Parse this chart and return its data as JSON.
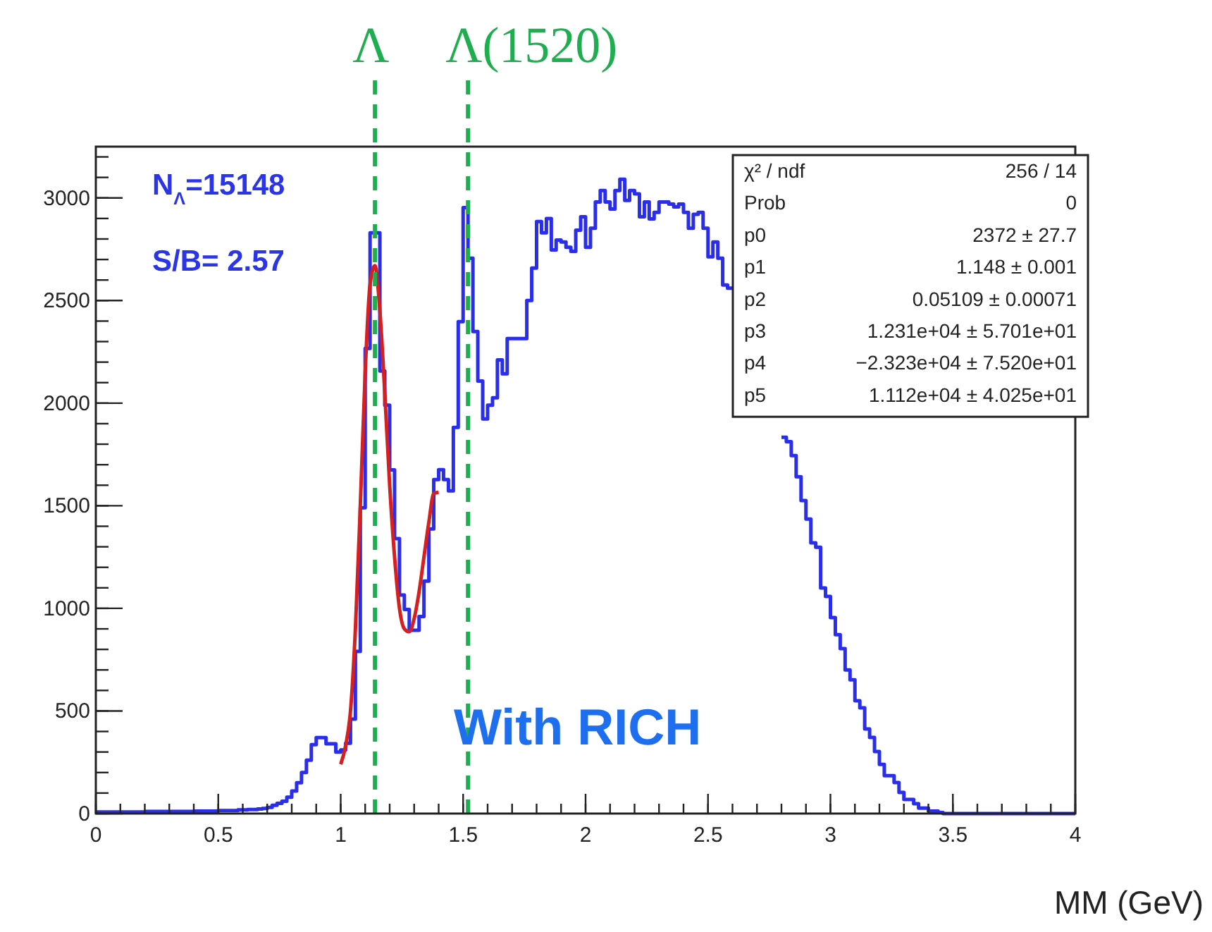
{
  "chart_data": {
    "type": "histogram",
    "xlabel": "MM (GeV)",
    "xlim": [
      0,
      4
    ],
    "xticks": [
      0,
      0.5,
      1,
      1.5,
      2,
      2.5,
      3,
      3.5,
      4
    ],
    "ylim": [
      0,
      3250
    ],
    "yticks": [
      0,
      500,
      1000,
      1500,
      2000,
      2500,
      3000
    ],
    "grid": false,
    "series": [
      {
        "color": "#2a2ee8",
        "bins": [
          0,
          0.02,
          0.04,
          0.06,
          0.08,
          0.1,
          0.12,
          0.14,
          0.16,
          0.18,
          0.2,
          0.22,
          0.24,
          0.26,
          0.28,
          0.3,
          0.32,
          0.34,
          0.36,
          0.38,
          0.4,
          0.42,
          0.44,
          0.46,
          0.48,
          0.5,
          0.52,
          0.54,
          0.56,
          0.58,
          0.6,
          0.62,
          0.64,
          0.66,
          0.68,
          0.7,
          0.72,
          0.74,
          0.76,
          0.78,
          0.8,
          0.82,
          0.84,
          0.86,
          0.88,
          0.9,
          0.92,
          0.94,
          0.96,
          0.98,
          1,
          1.02,
          1.04,
          1.06,
          1.08,
          1.1,
          1.12,
          1.14,
          1.16,
          1.18,
          1.2,
          1.22,
          1.24,
          1.26,
          1.28,
          1.3,
          1.32,
          1.34,
          1.36,
          1.38,
          1.4,
          1.42,
          1.44,
          1.46,
          1.48,
          1.5,
          1.52,
          1.54,
          1.56,
          1.58,
          1.6,
          1.62,
          1.64,
          1.66,
          1.68,
          1.7,
          1.72,
          1.74,
          1.76,
          1.78,
          1.8,
          1.82,
          1.84,
          1.86,
          1.88,
          1.9,
          1.92,
          1.94,
          1.96,
          1.98,
          2,
          2.02,
          2.04,
          2.06,
          2.08,
          2.1,
          2.12,
          2.14,
          2.16,
          2.18,
          2.2,
          2.22,
          2.24,
          2.26,
          2.28,
          2.3,
          2.32,
          2.34,
          2.36,
          2.38,
          2.4,
          2.42,
          2.44,
          2.46,
          2.48,
          2.5,
          2.52,
          2.54,
          2.56,
          2.58,
          2.6
        ],
        "values": [
          8,
          8,
          8,
          8,
          8,
          8,
          8,
          8,
          8,
          8,
          10,
          10,
          10,
          10,
          10,
          10,
          10,
          10,
          10,
          10,
          12,
          12,
          12,
          12,
          12,
          15,
          15,
          15,
          15,
          18,
          18,
          20,
          20,
          22,
          25,
          30,
          40,
          50,
          60,
          80,
          110,
          150,
          200,
          260,
          336,
          370,
          370,
          340,
          340,
          300,
          310,
          343,
          460,
          790,
          1490,
          2267,
          2830,
          2830,
          2157,
          1990,
          1675,
          1340,
          1065,
          995,
          893,
          893,
          960,
          1133,
          1387,
          1628,
          1676,
          1628,
          1573,
          1882,
          2397,
          2953,
          2706,
          2349,
          2108,
          1923,
          1990,
          2026,
          2211,
          2143,
          2315,
          2315,
          2315,
          2315,
          2500,
          2658,
          2885,
          2830,
          2900,
          2747,
          2795,
          2785,
          2760,
          2740,
          2843,
          2908,
          2760,
          2852,
          2980,
          3036,
          2980,
          2946,
          3036,
          3091,
          2988,
          3036,
          3020,
          2908,
          2980,
          2898,
          2930,
          2980,
          2980,
          2970,
          2956,
          2970,
          2930,
          2852,
          2920,
          2930,
          2852,
          2713,
          2785,
          2706,
          2576,
          2560
        ]
      },
      {
        "color": "#2a2ee8",
        "bins": [
          2.8,
          2.82,
          2.84,
          2.86,
          2.88,
          2.9,
          2.92,
          2.94,
          2.96,
          2.98,
          3,
          3.02,
          3.04,
          3.06,
          3.08,
          3.1,
          3.12,
          3.14,
          3.16,
          3.18,
          3.2,
          3.22,
          3.24,
          3.26,
          3.28,
          3.3,
          3.32,
          3.34,
          3.36,
          3.38,
          3.4,
          3.42,
          3.44,
          3.46,
          3.48,
          3.5,
          3.52,
          3.54,
          3.56,
          3.58,
          3.6,
          3.62,
          3.64,
          3.66,
          3.68,
          3.7,
          3.72,
          3.74,
          3.76,
          3.78,
          3.8,
          3.82,
          3.84,
          3.86,
          3.88,
          3.9,
          3.92,
          3.94,
          3.96,
          3.98,
          4
        ],
        "values": [
          1834,
          1812,
          1744,
          1641,
          1525,
          1435,
          1319,
          1298,
          1099,
          1058,
          955,
          872,
          804,
          700,
          652,
          550,
          515,
          412,
          371,
          302,
          240,
          185,
          185,
          151,
          103,
          69,
          69,
          48,
          27,
          27,
          12,
          12,
          5,
          0,
          0,
          0,
          0,
          0,
          0,
          0,
          0,
          0,
          0,
          0,
          0,
          0,
          0,
          0,
          0,
          0,
          0,
          0,
          0,
          0,
          0,
          0,
          0,
          0,
          0,
          0
        ]
      },
      {
        "type": "line",
        "color": "#d42020",
        "x": [
          1,
          1.02,
          1.04,
          1.06,
          1.08,
          1.1,
          1.12,
          1.14,
          1.16,
          1.18,
          1.2,
          1.22,
          1.24,
          1.26,
          1.28,
          1.3,
          1.32,
          1.34,
          1.36,
          1.38,
          1.4
        ],
        "values": [
          240,
          330,
          500,
          900,
          1500,
          2150,
          2580,
          2670,
          2450,
          2050,
          1600,
          1250,
          1000,
          900,
          886,
          950,
          1080,
          1250,
          1420,
          1560,
          1566
        ]
      }
    ],
    "ref_lines": [
      {
        "axis": "x",
        "value": 1.14,
        "label": "Λ",
        "color": "#1fae4f",
        "line_style": "dashed"
      },
      {
        "axis": "x",
        "value": 1.52,
        "label": "Λ(1520)",
        "color": "#1fae4f",
        "line_style": "dashed"
      }
    ],
    "annotations": [
      "N$_{Λ}$=15148",
      "S/B= 2.57",
      "With RICH",
      "χ² / ndf",
      "256 / 14",
      "Prob",
      "0",
      "p0",
      "2372 ± 27.7",
      "p1",
      "1.148 ± 0.001",
      "p2",
      "0.05109 ± 0.00071",
      "p3",
      "1.231e+04 ± 5.701e+01",
      "p4",
      "−2.323e+04 ± 7.520e+01",
      "p5",
      "1.112e+04 ± 4.025e+01"
    ]
  }
}
